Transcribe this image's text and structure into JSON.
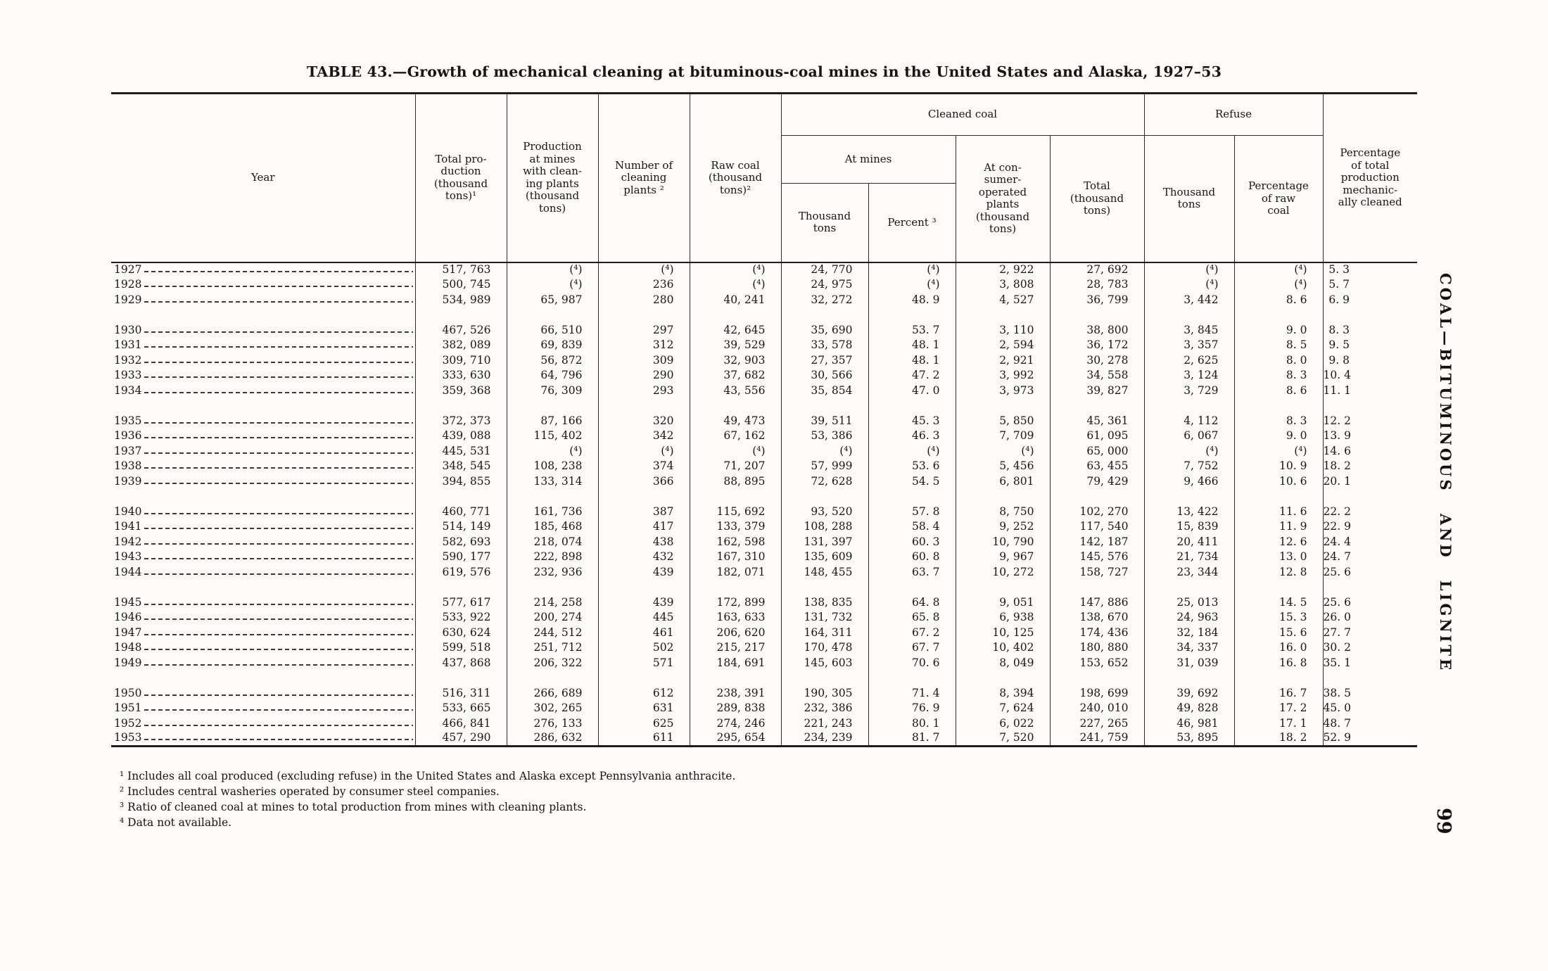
{
  "page": {
    "title": "TABLE 43.—Growth of mechanical cleaning at bituminous-coal mines in the United States and Alaska, 1927–53",
    "side_label": "COAL—BITUMINOUS AND LIGNITE",
    "page_number": "99"
  },
  "table": {
    "headers": {
      "year": "Year",
      "total_production": "Total pro-\nduction\n(thousand\ntons)¹",
      "production_cleaning": "Production\nat mines\nwith clean-\ning plants\n(thousand\ntons)",
      "number_plants": "Number of\ncleaning\nplants ²",
      "raw_coal": "Raw coal\n(thousand\ntons)²",
      "cleaned_coal": "Cleaned coal",
      "at_mines": "At mines",
      "at_mines_thousand": "Thousand\ntons",
      "at_mines_percent": "Percent ³",
      "consumer_plants": "At con-\nsumer-\noperated\nplants\n(thousand\ntons)",
      "total_cleaned": "Total\n(thousand\ntons)",
      "refuse": "Refuse",
      "refuse_thousand": "Thousand\ntons",
      "refuse_percent": "Percentage\nof raw\ncoal",
      "percent_total": "Percentage\nof total\nproduction\nmechanic-\nally cleaned"
    },
    "groups": [
      {
        "rows": [
          {
            "year": "1927",
            "values": [
              "517, 763",
              "(⁴)",
              "(⁴)",
              "(⁴)",
              "24, 770",
              "(⁴)",
              "2, 922",
              "27, 692",
              "(⁴)",
              "(⁴)",
              "5. 3"
            ]
          },
          {
            "year": "1928",
            "values": [
              "500, 745",
              "(⁴)",
              "236",
              "(⁴)",
              "24, 975",
              "(⁴)",
              "3, 808",
              "28, 783",
              "(⁴)",
              "(⁴)",
              "5. 7"
            ]
          },
          {
            "year": "1929",
            "values": [
              "534, 989",
              "65, 987",
              "280",
              "40, 241",
              "32, 272",
              "48. 9",
              "4, 527",
              "36, 799",
              "3, 442",
              "8. 6",
              "6. 9"
            ]
          }
        ]
      },
      {
        "rows": [
          {
            "year": "1930",
            "values": [
              "467, 526",
              "66, 510",
              "297",
              "42, 645",
              "35, 690",
              "53. 7",
              "3, 110",
              "38, 800",
              "3, 845",
              "9. 0",
              "8. 3"
            ]
          },
          {
            "year": "1931",
            "values": [
              "382, 089",
              "69, 839",
              "312",
              "39, 529",
              "33, 578",
              "48. 1",
              "2, 594",
              "36, 172",
              "3, 357",
              "8. 5",
              "9. 5"
            ]
          },
          {
            "year": "1932",
            "values": [
              "309, 710",
              "56, 872",
              "309",
              "32, 903",
              "27, 357",
              "48. 1",
              "2, 921",
              "30, 278",
              "2, 625",
              "8. 0",
              "9. 8"
            ]
          },
          {
            "year": "1933",
            "values": [
              "333, 630",
              "64, 796",
              "290",
              "37, 682",
              "30, 566",
              "47. 2",
              "3, 992",
              "34, 558",
              "3, 124",
              "8. 3",
              "10. 4"
            ]
          },
          {
            "year": "1934",
            "values": [
              "359, 368",
              "76, 309",
              "293",
              "43, 556",
              "35, 854",
              "47. 0",
              "3, 973",
              "39, 827",
              "3, 729",
              "8. 6",
              "11. 1"
            ]
          }
        ]
      },
      {
        "rows": [
          {
            "year": "1935",
            "values": [
              "372, 373",
              "87, 166",
              "320",
              "49, 473",
              "39, 511",
              "45. 3",
              "5, 850",
              "45, 361",
              "4, 112",
              "8. 3",
              "12. 2"
            ]
          },
          {
            "year": "1936",
            "values": [
              "439, 088",
              "115, 402",
              "342",
              "67, 162",
              "53, 386",
              "46. 3",
              "7, 709",
              "61, 095",
              "6, 067",
              "9. 0",
              "13. 9"
            ]
          },
          {
            "year": "1937",
            "values": [
              "445, 531",
              "(⁴)",
              "(⁴)",
              "(⁴)",
              "(⁴)",
              "(⁴)",
              "(⁴)",
              "65, 000",
              "(⁴)",
              "(⁴)",
              "14. 6"
            ]
          },
          {
            "year": "1938",
            "values": [
              "348, 545",
              "108, 238",
              "374",
              "71, 207",
              "57, 999",
              "53. 6",
              "5, 456",
              "63, 455",
              "7, 752",
              "10. 9",
              "18. 2"
            ]
          },
          {
            "year": "1939",
            "values": [
              "394, 855",
              "133, 314",
              "366",
              "88, 895",
              "72, 628",
              "54. 5",
              "6, 801",
              "79, 429",
              "9, 466",
              "10. 6",
              "20. 1"
            ]
          }
        ]
      },
      {
        "rows": [
          {
            "year": "1940",
            "values": [
              "460, 771",
              "161, 736",
              "387",
              "115, 692",
              "93, 520",
              "57. 8",
              "8, 750",
              "102, 270",
              "13, 422",
              "11. 6",
              "22. 2"
            ]
          },
          {
            "year": "1941",
            "values": [
              "514, 149",
              "185, 468",
              "417",
              "133, 379",
              "108, 288",
              "58. 4",
              "9, 252",
              "117, 540",
              "15, 839",
              "11. 9",
              "22. 9"
            ]
          },
          {
            "year": "1942",
            "values": [
              "582, 693",
              "218, 074",
              "438",
              "162, 598",
              "131, 397",
              "60. 3",
              "10, 790",
              "142, 187",
              "20, 411",
              "12. 6",
              "24. 4"
            ]
          },
          {
            "year": "1943",
            "values": [
              "590, 177",
              "222, 898",
              "432",
              "167, 310",
              "135, 609",
              "60. 8",
              "9, 967",
              "145, 576",
              "21, 734",
              "13. 0",
              "24. 7"
            ]
          },
          {
            "year": "1944",
            "values": [
              "619, 576",
              "232, 936",
              "439",
              "182, 071",
              "148, 455",
              "63. 7",
              "10, 272",
              "158, 727",
              "23, 344",
              "12. 8",
              "25. 6"
            ]
          }
        ]
      },
      {
        "rows": [
          {
            "year": "1945",
            "values": [
              "577, 617",
              "214, 258",
              "439",
              "172, 899",
              "138, 835",
              "64. 8",
              "9, 051",
              "147, 886",
              "25, 013",
              "14. 5",
              "25. 6"
            ]
          },
          {
            "year": "1946",
            "values": [
              "533, 922",
              "200, 274",
              "445",
              "163, 633",
              "131, 732",
              "65. 8",
              "6, 938",
              "138, 670",
              "24, 963",
              "15. 3",
              "26. 0"
            ]
          },
          {
            "year": "1947",
            "values": [
              "630, 624",
              "244, 512",
              "461",
              "206, 620",
              "164, 311",
              "67. 2",
              "10, 125",
              "174, 436",
              "32, 184",
              "15. 6",
              "27. 7"
            ]
          },
          {
            "year": "1948",
            "values": [
              "599, 518",
              "251, 712",
              "502",
              "215, 217",
              "170, 478",
              "67. 7",
              "10, 402",
              "180, 880",
              "34, 337",
              "16. 0",
              "30. 2"
            ]
          },
          {
            "year": "1949",
            "values": [
              "437, 868",
              "206, 322",
              "571",
              "184, 691",
              "145, 603",
              "70. 6",
              "8, 049",
              "153, 652",
              "31, 039",
              "16. 8",
              "35. 1"
            ]
          }
        ]
      },
      {
        "rows": [
          {
            "year": "1950",
            "values": [
              "516, 311",
              "266, 689",
              "612",
              "238, 391",
              "190, 305",
              "71. 4",
              "8, 394",
              "198, 699",
              "39, 692",
              "16. 7",
              "38. 5"
            ]
          },
          {
            "year": "1951",
            "values": [
              "533, 665",
              "302, 265",
              "631",
              "289, 838",
              "232, 386",
              "76. 9",
              "7, 624",
              "240, 010",
              "49, 828",
              "17. 2",
              "45. 0"
            ]
          },
          {
            "year": "1952",
            "values": [
              "466, 841",
              "276, 133",
              "625",
              "274, 246",
              "221, 243",
              "80. 1",
              "6, 022",
              "227, 265",
              "46, 981",
              "17. 1",
              "48. 7"
            ]
          },
          {
            "year": "1953",
            "values": [
              "457, 290",
              "286, 632",
              "611",
              "295, 654",
              "234, 239",
              "81. 7",
              "7, 520",
              "241, 759",
              "53, 895",
              "18. 2",
              "52. 9"
            ]
          }
        ]
      }
    ],
    "footnotes": [
      "¹ Includes all coal produced (excluding refuse) in the United States and Alaska except Pennsylvania anthracite.",
      "² Includes central washeries operated by consumer steel companies.",
      "³ Ratio of cleaned coal at mines to total production from mines with cleaning plants.",
      "⁴ Data not available."
    ]
  }
}
